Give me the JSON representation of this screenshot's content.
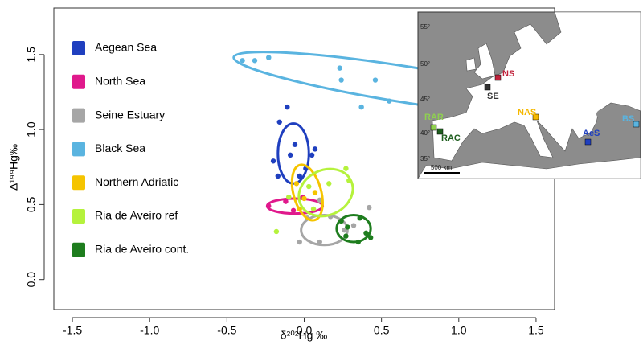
{
  "chart_data": {
    "type": "scatter",
    "x_label": "δ²⁰²Hg ‰",
    "y_label": "Δ¹⁹⁹Hg‰",
    "xlim": [
      -1.62,
      1.62
    ],
    "ylim": [
      -0.2,
      1.81
    ],
    "xticks": [
      -1.5,
      {
        "value": -1,
        "label": "-1.0"
      },
      -0.5,
      {
        "value": 0,
        "label": "0.0"
      },
      0.5,
      {
        "value": 1,
        "label": "1.0"
      },
      1.5
    ],
    "yticks": [
      {
        "value": 0,
        "label": "0.0"
      },
      0.5,
      {
        "value": 1,
        "label": "1.0"
      },
      1.5
    ],
    "legend": "top-left",
    "series": [
      {
        "name": "Aegean Sea",
        "color": "#1f3fbf",
        "x": [
          -0.11,
          -0.16,
          -0.2,
          -0.17,
          -0.03,
          0.01,
          0.07,
          0.05,
          -0.09,
          -0.06
        ],
        "values": [
          1.15,
          1.05,
          0.79,
          0.69,
          0.69,
          0.74,
          0.87,
          0.83,
          0.83,
          0.9
        ],
        "ellipse": {
          "cx": -0.07,
          "cy": 0.84,
          "rx": 0.1,
          "ry": 0.2,
          "angle": 0
        }
      },
      {
        "name": "North Sea",
        "color": "#e0198c",
        "x": [
          -0.23,
          -0.12,
          -0.07,
          -0.01
        ],
        "values": [
          0.49,
          0.52,
          0.46,
          0.55
        ],
        "ellipse": {
          "cx": -0.06,
          "cy": 0.49,
          "rx": 0.18,
          "ry": 0.05,
          "angle": 0
        }
      },
      {
        "name": "Seine Estuary",
        "color": "#a6a6a6",
        "x": [
          -0.03,
          0.1,
          0.02,
          0.17,
          0.26,
          0.42,
          0.32,
          0.1
        ],
        "values": [
          0.25,
          0.25,
          0.41,
          0.42,
          0.33,
          0.48,
          0.36,
          0.53
        ],
        "ellipse": {
          "cx": 0.13,
          "cy": 0.33,
          "rx": 0.15,
          "ry": 0.1,
          "angle": 0
        }
      },
      {
        "name": "Black Sea",
        "color": "#5ab4e0",
        "x": [
          -0.4,
          -0.32,
          -0.23,
          0.23,
          0.24,
          0.46,
          0.55,
          0.37
        ],
        "values": [
          1.46,
          1.46,
          1.48,
          1.41,
          1.33,
          1.33,
          1.19,
          1.15
        ],
        "ellipse": {
          "cx": 0.66,
          "cy": 1.3,
          "rx": 1.13,
          "ry": 0.12,
          "angle": 9
        }
      },
      {
        "name": "Northern Adriatic",
        "color": "#f5c400",
        "x": [
          -0.05,
          0,
          0.07,
          -0.03
        ],
        "values": [
          0.64,
          0.54,
          0.58,
          0.47
        ],
        "ellipse": {
          "cx": 0.02,
          "cy": 0.58,
          "rx": 0.09,
          "ry": 0.19,
          "angle": -15
        }
      },
      {
        "name": "Ria de Aveiro ref",
        "color": "#b5f23c",
        "x": [
          -0.18,
          -0.1,
          0.16,
          0.27,
          0.29,
          0.06,
          0.03
        ],
        "values": [
          0.32,
          0.55,
          0.64,
          0.74,
          0.66,
          0.47,
          0.62
        ],
        "ellipse": {
          "cx": 0.14,
          "cy": 0.58,
          "rx": 0.18,
          "ry": 0.15,
          "angle": -25
        }
      },
      {
        "name": "Ria de Aveiro cont.",
        "color": "#1e7d1e",
        "x": [
          0.24,
          0.27,
          0.35,
          0.4,
          0.43,
          0.36,
          0.28
        ],
        "values": [
          0.39,
          0.29,
          0.25,
          0.31,
          0.28,
          0.41,
          0.35
        ],
        "ellipse": {
          "cx": 0.32,
          "cy": 0.34,
          "rx": 0.11,
          "ry": 0.09,
          "angle": 0
        }
      }
    ],
    "inset": {
      "latitudes": [
        "55°",
        "50°",
        "45°",
        "40°",
        "35°"
      ],
      "scale": "500 km",
      "sites": [
        {
          "text": "NS",
          "color": "#c0223b"
        },
        {
          "text": "SE",
          "color": "#333333"
        },
        {
          "text": "NAS",
          "color": "#f5b800"
        },
        {
          "text": "AeS",
          "color": "#1f3fbf"
        },
        {
          "text": "BS",
          "color": "#5ab4e0"
        },
        {
          "text": "RAR",
          "color": "#8fd14f"
        },
        {
          "text": "RAC",
          "color": "#1e5e1e"
        }
      ]
    }
  }
}
